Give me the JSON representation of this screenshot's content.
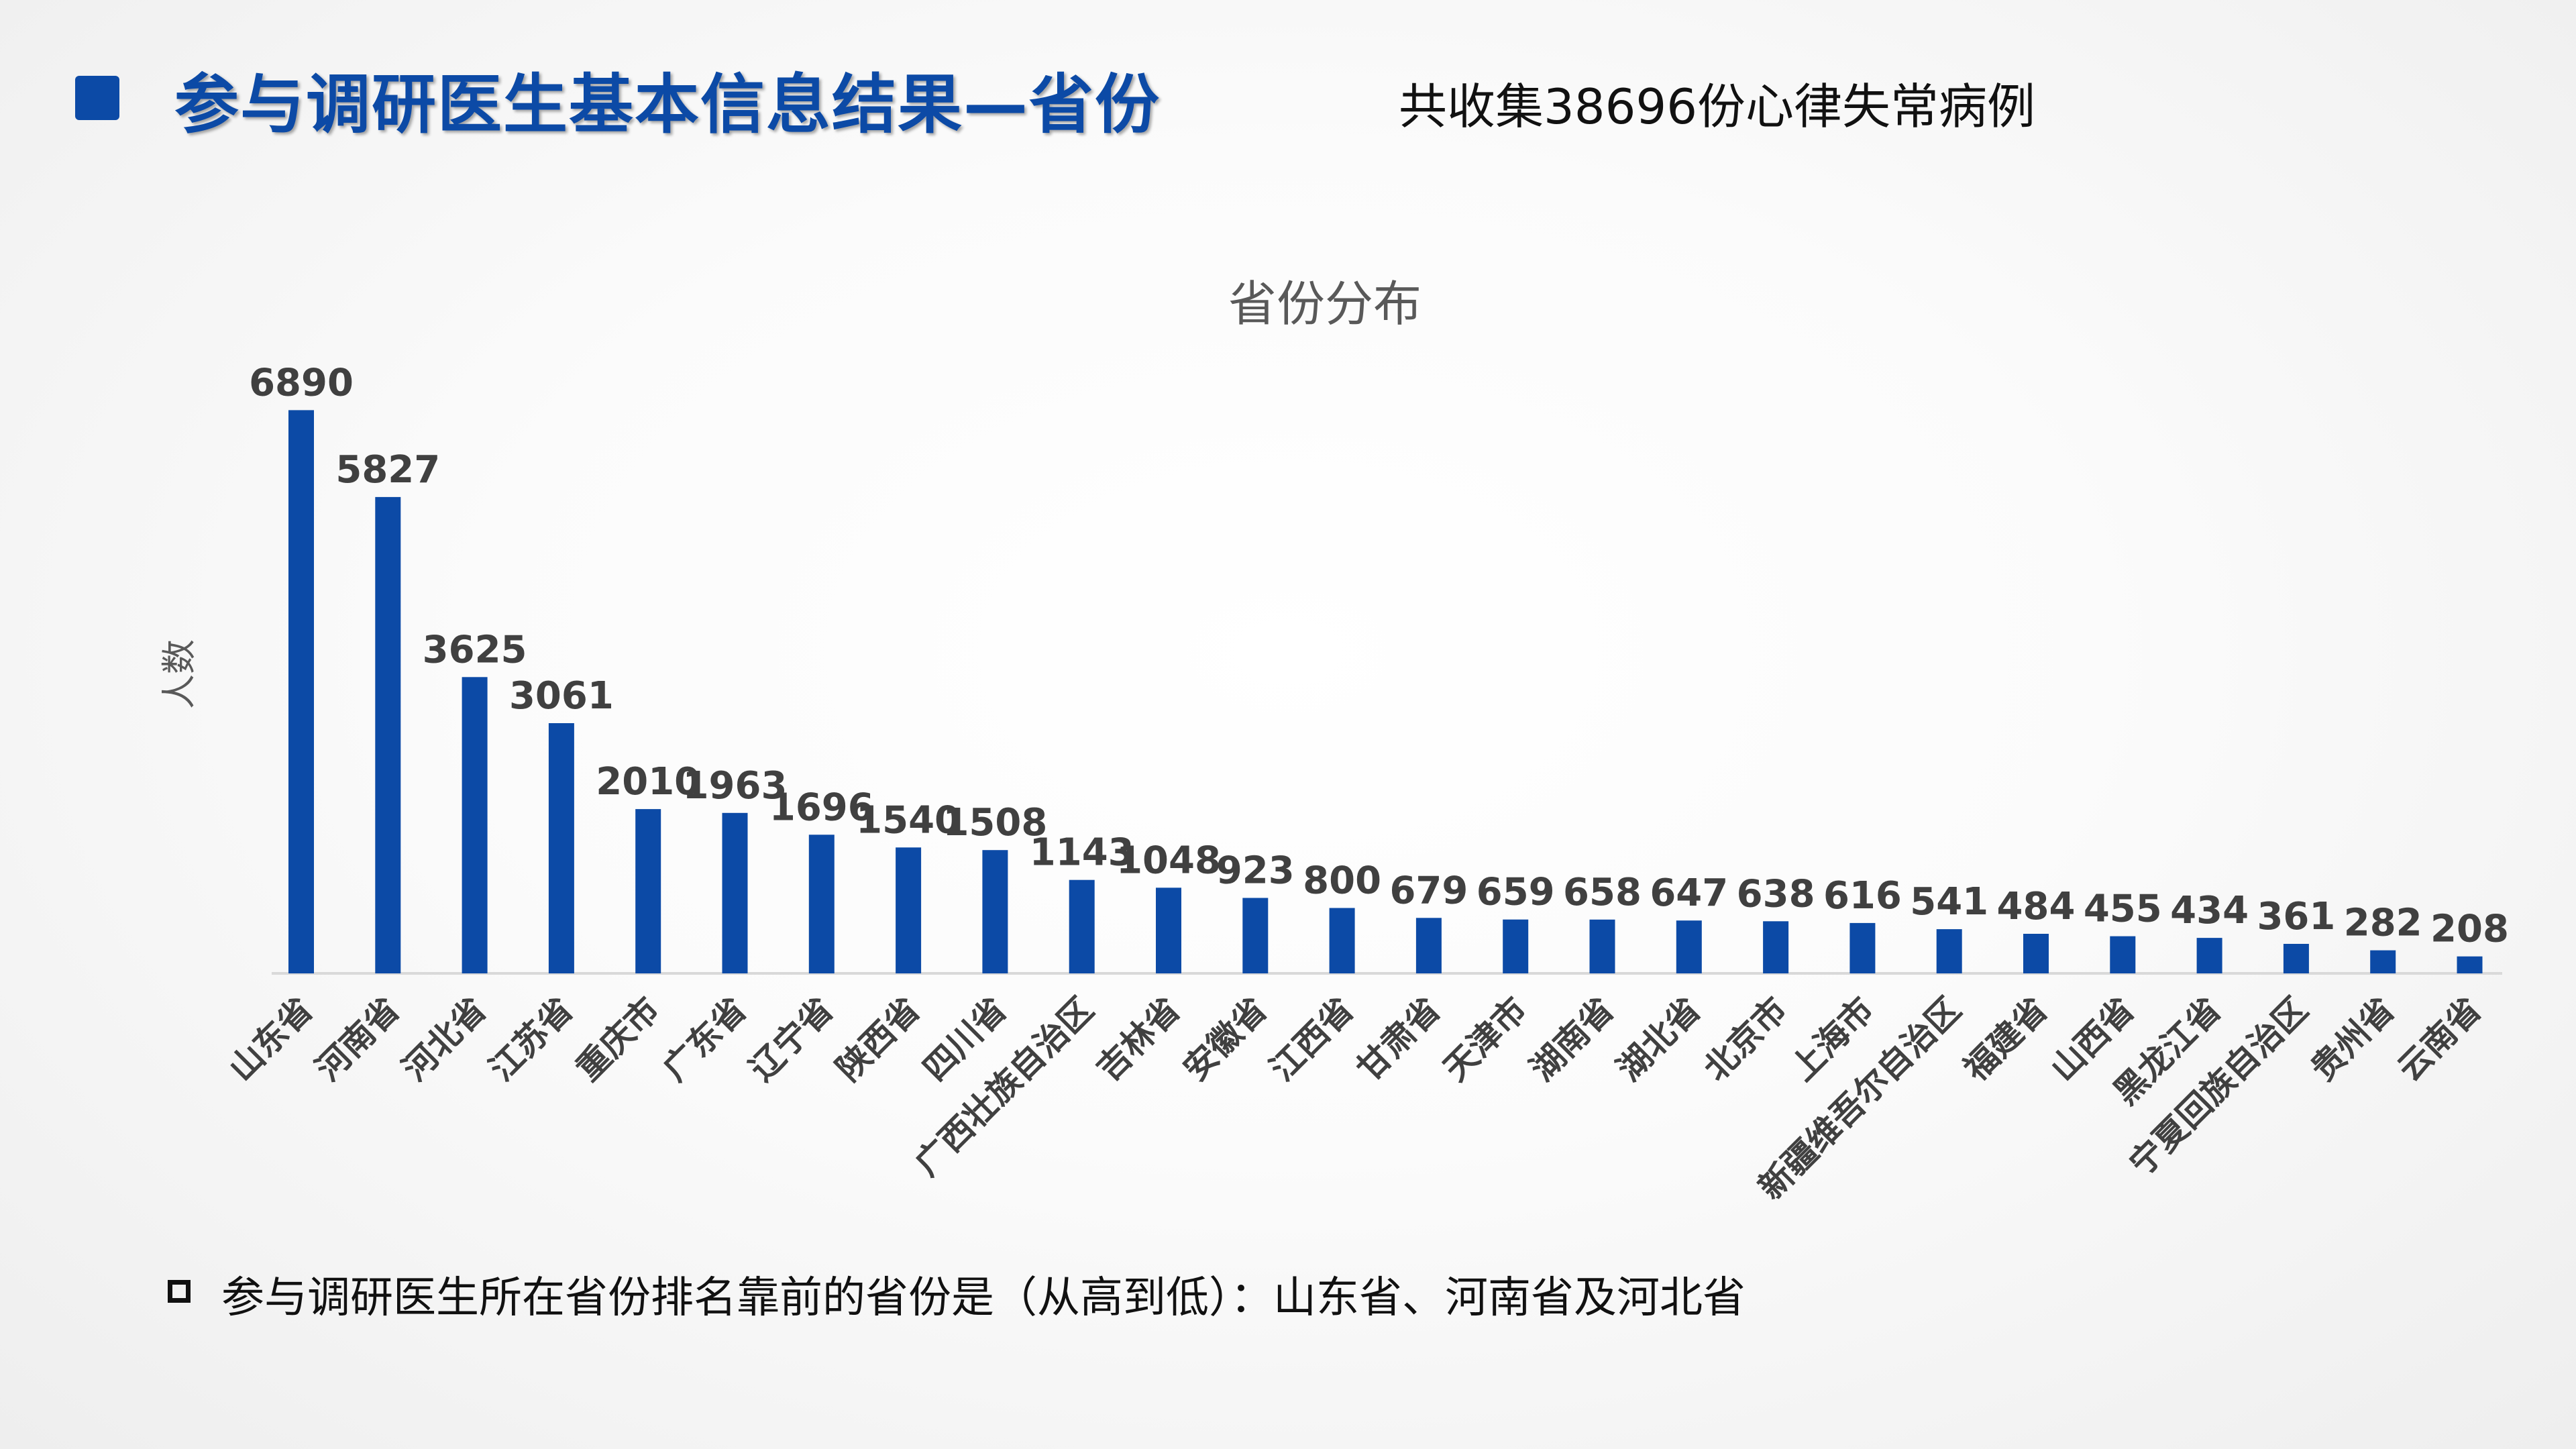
{
  "header": {
    "title": "参与调研医生基本信息结果—省份",
    "subtitle": "共收集38696份心律失常病例"
  },
  "footer": {
    "note": "参与调研医生所在省份排名靠前的省份是（从高到低）：山东省、河南省及河北省"
  },
  "colors": {
    "bar": "#0c4aa6",
    "title": "#0c4aa6"
  },
  "chart_data": {
    "type": "bar",
    "title": "省份分布",
    "xlabel": "",
    "ylabel": "人数",
    "ylim": [
      0,
      7000
    ],
    "grid": false,
    "legend": "none",
    "categories": [
      "山东省",
      "河南省",
      "河北省",
      "江苏省",
      "重庆市",
      "广东省",
      "辽宁省",
      "陕西省",
      "四川省",
      "广西壮族自治区",
      "吉林省",
      "安徽省",
      "江西省",
      "甘肃省",
      "天津市",
      "湖南省",
      "湖北省",
      "北京市",
      "上海市",
      "新疆维吾尔自治区",
      "福建省",
      "山西省",
      "黑龙江省",
      "宁夏回族自治区",
      "贵州省",
      "云南省"
    ],
    "values": [
      6890,
      5827,
      3625,
      3061,
      2010,
      1963,
      1696,
      1540,
      1508,
      1143,
      1048,
      923,
      800,
      679,
      659,
      658,
      647,
      638,
      616,
      541,
      484,
      455,
      434,
      361,
      282,
      208
    ]
  }
}
